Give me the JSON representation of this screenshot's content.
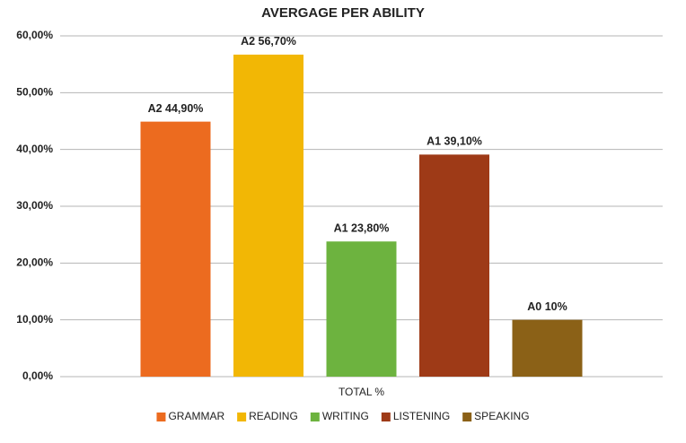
{
  "chart_data": {
    "type": "bar",
    "title": "AVERGAGE PER ABILITY",
    "categories": [
      "TOTAL %"
    ],
    "series": [
      {
        "name": "GRAMMAR",
        "color": "#ec6b1f",
        "values": [
          44.9
        ],
        "value_labels": [
          "A2 44,90%"
        ]
      },
      {
        "name": "READING",
        "color": "#f2b705",
        "values": [
          56.7
        ],
        "value_labels": [
          "A2 56,70%"
        ]
      },
      {
        "name": "WRITING",
        "color": "#6db33f",
        "values": [
          23.8
        ],
        "value_labels": [
          "A1 23,80%"
        ]
      },
      {
        "name": "LISTENING",
        "color": "#9e3a17",
        "values": [
          39.1
        ],
        "value_labels": [
          "A1 39,10%"
        ]
      },
      {
        "name": "SPEAKING",
        "color": "#8b6117",
        "values": [
          10
        ],
        "value_labels": [
          "A0 10%"
        ]
      }
    ],
    "ylim": [
      0,
      60
    ],
    "yticks": [
      {
        "value": 0,
        "label": "0,00%"
      },
      {
        "value": 10,
        "label": "10,00%"
      },
      {
        "value": 20,
        "label": "20,00%"
      },
      {
        "value": 30,
        "label": "30,00%"
      },
      {
        "value": 40,
        "label": "40,00%"
      },
      {
        "value": 50,
        "label": "50,00%"
      },
      {
        "value": 60,
        "label": "60,00%"
      }
    ],
    "grid": true,
    "legend": "bottom"
  }
}
